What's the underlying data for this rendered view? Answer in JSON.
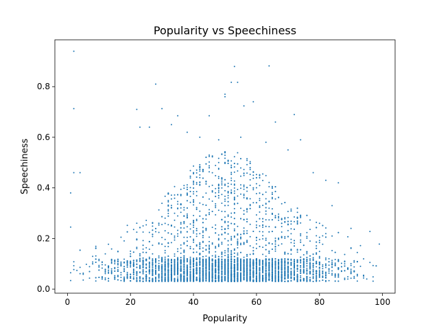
{
  "chart_data": {
    "type": "scatter",
    "title": "Popularity vs Speechiness",
    "xlabel": "Popularity",
    "ylabel": "Speechiness",
    "xlim": [
      -4,
      104
    ],
    "ylim": [
      -0.016,
      0.985
    ],
    "xticks": [
      0,
      20,
      40,
      60,
      80,
      100
    ],
    "yticks": [
      0.0,
      0.2,
      0.4,
      0.6,
      0.8
    ],
    "ytick_labels": [
      "0.0",
      "0.2",
      "0.4",
      "0.6",
      "0.8"
    ],
    "grid": false,
    "marker_color": "#1f77b4",
    "notable_points": [
      [
        2,
        0.94
      ],
      [
        2,
        0.713
      ],
      [
        1,
        0.38
      ],
      [
        2,
        0.46
      ],
      [
        4,
        0.46
      ],
      [
        1,
        0.245
      ],
      [
        28,
        0.81
      ],
      [
        53,
        0.88
      ],
      [
        64,
        0.882
      ],
      [
        54,
        0.817
      ],
      [
        52,
        0.817
      ],
      [
        50,
        0.77
      ],
      [
        50,
        0.76
      ],
      [
        56,
        0.724
      ],
      [
        59,
        0.74
      ],
      [
        22,
        0.71
      ],
      [
        30,
        0.713
      ],
      [
        33,
        0.65
      ],
      [
        35,
        0.685
      ],
      [
        45,
        0.685
      ],
      [
        66,
        0.66
      ],
      [
        72,
        0.69
      ],
      [
        74,
        0.59
      ],
      [
        23,
        0.64
      ],
      [
        26,
        0.64
      ],
      [
        38,
        0.62
      ],
      [
        42,
        0.6
      ],
      [
        48,
        0.59
      ],
      [
        55,
        0.6
      ],
      [
        63,
        0.58
      ],
      [
        70,
        0.55
      ],
      [
        99,
        0.178
      ],
      [
        96,
        0.228
      ],
      [
        93,
        0.09
      ],
      [
        92,
        0.145
      ],
      [
        90,
        0.24
      ],
      [
        89,
        0.04
      ],
      [
        87,
        0.07
      ],
      [
        86,
        0.42
      ],
      [
        84,
        0.33
      ],
      [
        82,
        0.43
      ],
      [
        80,
        0.26
      ],
      [
        78,
        0.46
      ],
      [
        76,
        0.14
      ],
      [
        83,
        0.12
      ],
      [
        85,
        0.06
      ],
      [
        88,
        0.1
      ],
      [
        91,
        0.05
      ],
      [
        95,
        0.04
      ]
    ],
    "density_profile": {
      "description_free_params": true,
      "popularity_peak": 50,
      "popularity_spread": 17,
      "popularity_min": 1,
      "popularity_max": 99,
      "speechiness_floor": 0.03,
      "speechiness_dense_ceiling": 0.12
    }
  }
}
